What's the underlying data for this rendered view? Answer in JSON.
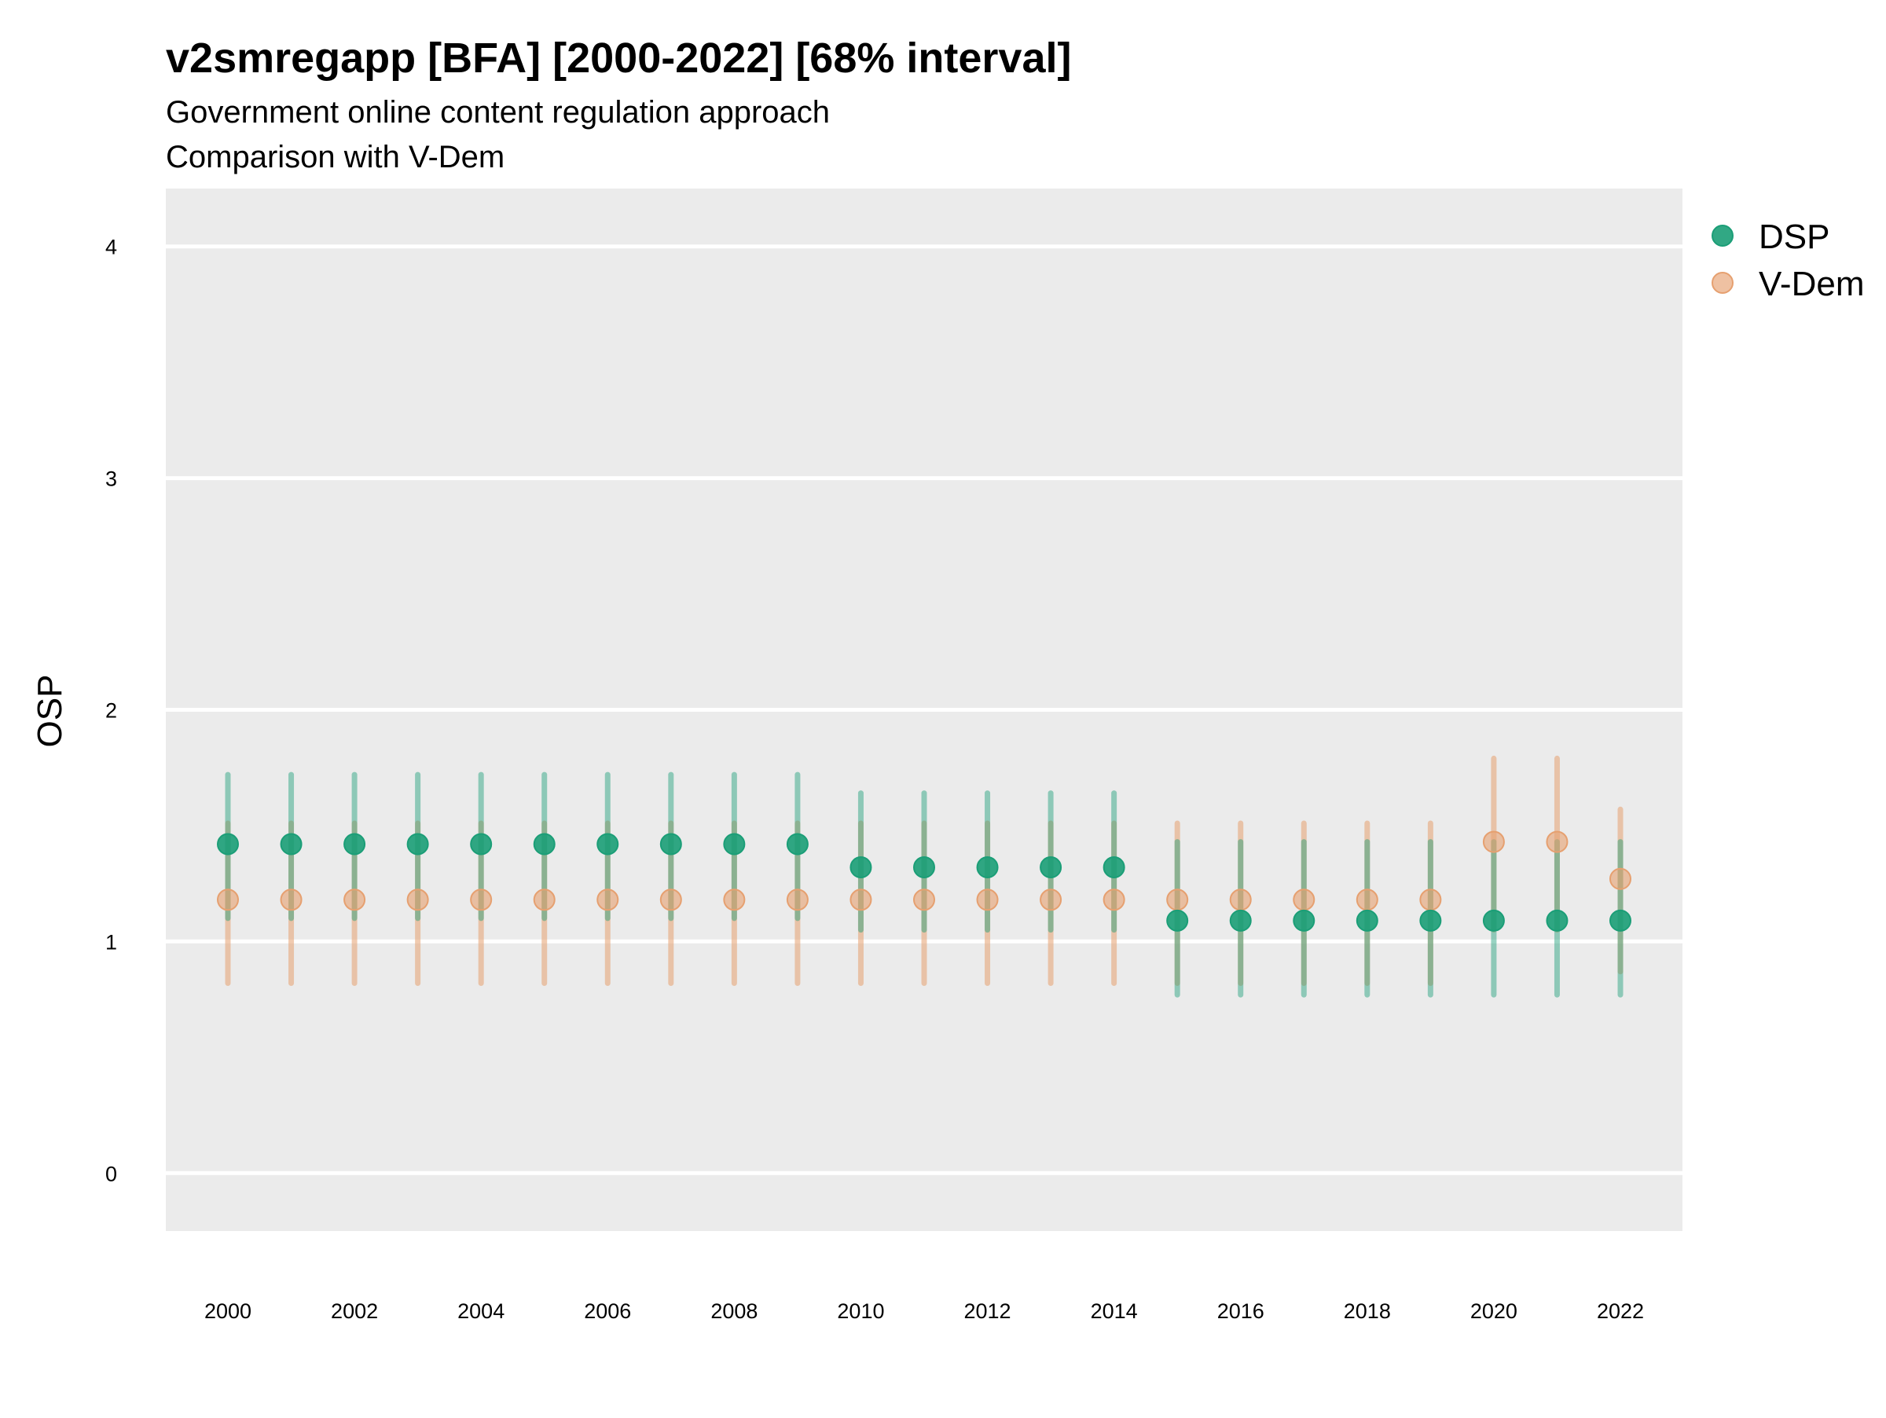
{
  "chart_data": {
    "type": "scatter",
    "title": "v2smregapp [BFA] [2000-2022] [68% interval]",
    "subtitle_lines": [
      "Government online content regulation approach",
      "Comparison with V-Dem"
    ],
    "ylabel": "OSP",
    "xlabel": "",
    "ylim": [
      -0.25,
      4.25
    ],
    "y_ticks": [
      0,
      1,
      2,
      3,
      4
    ],
    "x_tick_labels": [
      2000,
      2002,
      2004,
      2006,
      2008,
      2010,
      2012,
      2014,
      2016,
      2018,
      2020,
      2022
    ],
    "grid": "horizontal",
    "legend_placement": "top-right, outside plot",
    "background": "#ebebeb",
    "x": [
      2000,
      2001,
      2002,
      2003,
      2004,
      2005,
      2006,
      2007,
      2008,
      2009,
      2010,
      2011,
      2012,
      2013,
      2014,
      2015,
      2016,
      2017,
      2018,
      2019,
      2020,
      2021,
      2022
    ],
    "series": [
      {
        "name": "DSP",
        "color": "#1b9e77",
        "values": [
          1.42,
          1.42,
          1.42,
          1.42,
          1.42,
          1.42,
          1.42,
          1.42,
          1.42,
          1.42,
          1.32,
          1.32,
          1.32,
          1.32,
          1.32,
          1.09,
          1.09,
          1.09,
          1.09,
          1.09,
          1.09,
          1.09,
          1.09
        ],
        "interval_low": [
          1.1,
          1.1,
          1.1,
          1.1,
          1.1,
          1.1,
          1.1,
          1.1,
          1.1,
          1.1,
          1.05,
          1.05,
          1.05,
          1.05,
          1.05,
          0.77,
          0.77,
          0.77,
          0.77,
          0.77,
          0.77,
          0.77,
          0.77
        ],
        "interval_high": [
          1.72,
          1.72,
          1.72,
          1.72,
          1.72,
          1.72,
          1.72,
          1.72,
          1.72,
          1.72,
          1.64,
          1.64,
          1.64,
          1.64,
          1.64,
          1.43,
          1.43,
          1.43,
          1.43,
          1.43,
          1.43,
          1.43,
          1.43
        ]
      },
      {
        "name": "V-Dem",
        "color": "#e6a070",
        "values": [
          1.18,
          1.18,
          1.18,
          1.18,
          1.18,
          1.18,
          1.18,
          1.18,
          1.18,
          1.18,
          1.18,
          1.18,
          1.18,
          1.18,
          1.18,
          1.18,
          1.18,
          1.18,
          1.18,
          1.18,
          1.43,
          1.43,
          1.27
        ],
        "interval_low": [
          0.82,
          0.82,
          0.82,
          0.82,
          0.82,
          0.82,
          0.82,
          0.82,
          0.82,
          0.82,
          0.82,
          0.82,
          0.82,
          0.82,
          0.82,
          0.82,
          0.82,
          0.82,
          0.82,
          0.82,
          1.05,
          1.05,
          0.87
        ],
        "interval_high": [
          1.51,
          1.51,
          1.51,
          1.51,
          1.51,
          1.51,
          1.51,
          1.51,
          1.51,
          1.51,
          1.51,
          1.51,
          1.51,
          1.51,
          1.51,
          1.51,
          1.51,
          1.51,
          1.51,
          1.51,
          1.79,
          1.79,
          1.57
        ]
      }
    ]
  }
}
